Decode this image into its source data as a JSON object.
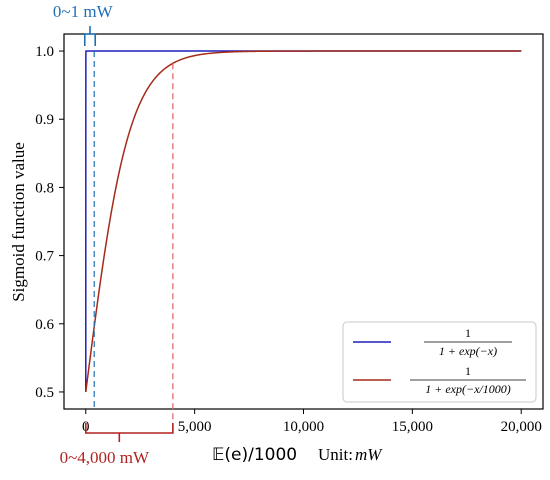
{
  "chart_data": {
    "type": "line",
    "xlabel_prefix": "𝔼(e)/1000",
    "xlabel_unit": "Unit:",
    "xlabel_unit_var": "mW",
    "ylabel": "Sigmoid function value",
    "xlim": [
      -1000,
      21000
    ],
    "ylim": [
      0.475,
      1.025
    ],
    "x_ticks": [
      0,
      5000,
      10000,
      15000,
      20000
    ],
    "x_tick_labels": [
      "0",
      "5,000",
      "10,000",
      "15,000",
      "20,000"
    ],
    "y_ticks": [
      0.5,
      0.6,
      0.7,
      0.8,
      0.9,
      1.0
    ],
    "y_tick_labels": [
      "0.5",
      "0.6",
      "0.7",
      "0.8",
      "0.9",
      "1.0"
    ],
    "series": [
      {
        "name_numerator": "1",
        "name_denominator": "1 + exp(−x)",
        "color": "#1f1fbf",
        "function": "sigmoid",
        "scale": 1,
        "x_range": [
          0,
          20000
        ]
      },
      {
        "name_numerator": "1",
        "name_denominator": "1 + exp(−x/1000)",
        "color": "#a52a1a",
        "function": "sigmoid",
        "scale": 1000,
        "x_range": [
          0,
          20000
        ]
      }
    ],
    "annotations": [
      {
        "text": "0~1 mW",
        "color": "#1f6fb4",
        "x_from": 0,
        "x_to": 250,
        "position": "top"
      },
      {
        "text": "0~4,000 mW",
        "color": "#b22222",
        "x_from": 0,
        "x_to": 4000,
        "position": "bottom"
      }
    ],
    "legend_position": "bottom-right",
    "grid": false
  }
}
